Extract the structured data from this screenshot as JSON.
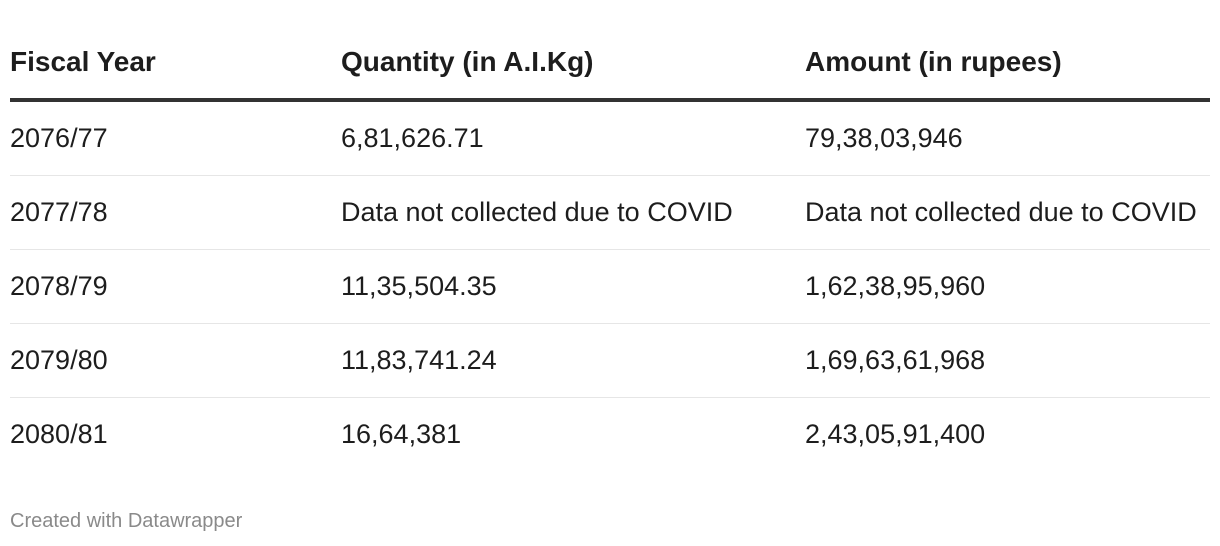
{
  "chart_data": {
    "type": "table",
    "columns": [
      "Fiscal Year",
      "Quantity (in A.I.Kg)",
      "Amount (in rupees)"
    ],
    "rows": [
      [
        "2076/77",
        "6,81,626.71",
        "79,38,03,946"
      ],
      [
        "2077/78",
        "Data not collected due to COVID",
        "Data not collected due to COVID"
      ],
      [
        "2078/79",
        "11,35,504.35",
        "1,62,38,95,960"
      ],
      [
        "2079/80",
        "11,83,741.24",
        "1,69,63,61,968"
      ],
      [
        "2080/81",
        "16,64,381",
        "2,43,05,91,400"
      ]
    ]
  },
  "footer": {
    "credit": "Created with Datawrapper"
  },
  "colors": {
    "text": "#1d1d1d",
    "header_rule": "#333333",
    "row_rule": "#e6e6e6",
    "credit": "#8a8a8a"
  }
}
